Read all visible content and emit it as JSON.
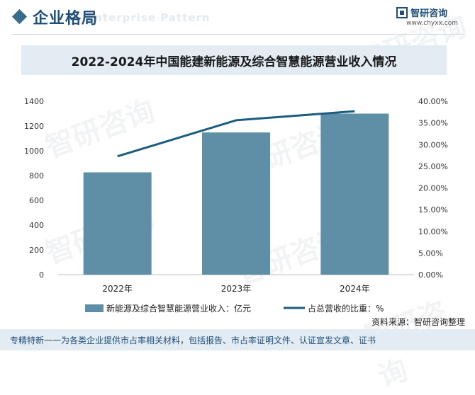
{
  "header": {
    "title": "企业格局",
    "subtitle": "Enterprise Pattern"
  },
  "brand": {
    "name": "智研咨询",
    "url": "www.chyxx.com",
    "watermark": "智研咨询"
  },
  "chart_data": {
    "type": "bar",
    "title": "2022-2024年中国能建新能源及综合智慧能源营业收入情况",
    "categories": [
      "2022年",
      "2023年",
      "2024年"
    ],
    "series": [
      {
        "name": "新能源及综合智慧能源营业收入：亿元",
        "type": "bar",
        "axis": "left",
        "color": "#5f8fa6",
        "values": [
          826,
          1148,
          1300
        ]
      },
      {
        "name": "占总营收的比重：%",
        "type": "line",
        "axis": "right",
        "color": "#1a5d7e",
        "values": [
          27.3,
          35.6,
          37.7
        ]
      }
    ],
    "ylim_left": [
      0,
      1400
    ],
    "yticks_left": [
      0,
      200,
      400,
      600,
      800,
      1000,
      1200,
      1400
    ],
    "ylim_right": [
      0,
      40
    ],
    "yticks_right": [
      "0.00%",
      "5.00%",
      "10.00%",
      "15.00%",
      "20.00%",
      "25.00%",
      "30.00%",
      "35.00%",
      "40.00%"
    ],
    "legend_position": "bottom"
  },
  "source": "资料来源：智研咨询整理",
  "footer": "专精特新一一为各类企业提供市占率相关材料，包括报告、市占率证明文件、认证宣发文章、证书"
}
